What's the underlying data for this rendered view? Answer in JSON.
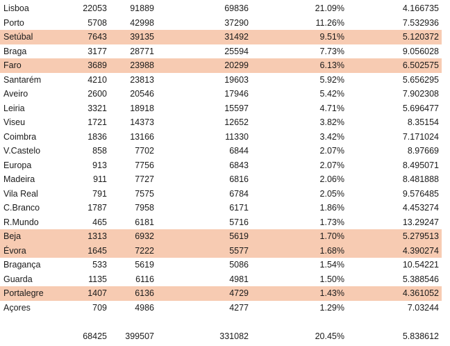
{
  "rows": [
    {
      "name": "Lisboa",
      "a": "22053",
      "b": "91889",
      "c": "69836",
      "d": "21.09%",
      "e": "4.166735",
      "highlight": false
    },
    {
      "name": "Porto",
      "a": "5708",
      "b": "42998",
      "c": "37290",
      "d": "11.26%",
      "e": "7.532936",
      "highlight": false
    },
    {
      "name": "Setúbal",
      "a": "7643",
      "b": "39135",
      "c": "31492",
      "d": "9.51%",
      "e": "5.120372",
      "highlight": true
    },
    {
      "name": "Braga",
      "a": "3177",
      "b": "28771",
      "c": "25594",
      "d": "7.73%",
      "e": "9.056028",
      "highlight": false
    },
    {
      "name": "Faro",
      "a": "3689",
      "b": "23988",
      "c": "20299",
      "d": "6.13%",
      "e": "6.502575",
      "highlight": true
    },
    {
      "name": "Santarém",
      "a": "4210",
      "b": "23813",
      "c": "19603",
      "d": "5.92%",
      "e": "5.656295",
      "highlight": false
    },
    {
      "name": "Aveiro",
      "a": "2600",
      "b": "20546",
      "c": "17946",
      "d": "5.42%",
      "e": "7.902308",
      "highlight": false
    },
    {
      "name": "Leiria",
      "a": "3321",
      "b": "18918",
      "c": "15597",
      "d": "4.71%",
      "e": "5.696477",
      "highlight": false
    },
    {
      "name": "Viseu",
      "a": "1721",
      "b": "14373",
      "c": "12652",
      "d": "3.82%",
      "e": "8.35154",
      "highlight": false
    },
    {
      "name": "Coimbra",
      "a": "1836",
      "b": "13166",
      "c": "11330",
      "d": "3.42%",
      "e": "7.171024",
      "highlight": false
    },
    {
      "name": "V.Castelo",
      "a": "858",
      "b": "7702",
      "c": "6844",
      "d": "2.07%",
      "e": "8.97669",
      "highlight": false
    },
    {
      "name": "Europa",
      "a": "913",
      "b": "7756",
      "c": "6843",
      "d": "2.07%",
      "e": "8.495071",
      "highlight": false
    },
    {
      "name": "Madeira",
      "a": "911",
      "b": "7727",
      "c": "6816",
      "d": "2.06%",
      "e": "8.481888",
      "highlight": false
    },
    {
      "name": "Vila Real",
      "a": "791",
      "b": "7575",
      "c": "6784",
      "d": "2.05%",
      "e": "9.576485",
      "highlight": false
    },
    {
      "name": "C.Branco",
      "a": "1787",
      "b": "7958",
      "c": "6171",
      "d": "1.86%",
      "e": "4.453274",
      "highlight": false
    },
    {
      "name": "R.Mundo",
      "a": "465",
      "b": "6181",
      "c": "5716",
      "d": "1.73%",
      "e": "13.29247",
      "highlight": false
    },
    {
      "name": "Beja",
      "a": "1313",
      "b": "6932",
      "c": "5619",
      "d": "1.70%",
      "e": "5.279513",
      "highlight": true
    },
    {
      "name": "Évora",
      "a": "1645",
      "b": "7222",
      "c": "5577",
      "d": "1.68%",
      "e": "4.390274",
      "highlight": true
    },
    {
      "name": "Bragança",
      "a": "533",
      "b": "5619",
      "c": "5086",
      "d": "1.54%",
      "e": "10.54221",
      "highlight": false
    },
    {
      "name": "Guarda",
      "a": "1135",
      "b": "6116",
      "c": "4981",
      "d": "1.50%",
      "e": "5.388546",
      "highlight": false
    },
    {
      "name": "Portalegre",
      "a": "1407",
      "b": "6136",
      "c": "4729",
      "d": "1.43%",
      "e": "4.361052",
      "highlight": true
    },
    {
      "name": "Açores",
      "a": "709",
      "b": "4986",
      "c": "4277",
      "d": "1.29%",
      "e": "7.03244",
      "highlight": false
    }
  ],
  "totals": {
    "a": "68425",
    "b": "399507",
    "c": "331082",
    "d": "20.45%",
    "e": "5.838612"
  },
  "colors": {
    "highlight": "#f7cbb2",
    "text": "#1a1a1a",
    "background": "#ffffff"
  }
}
